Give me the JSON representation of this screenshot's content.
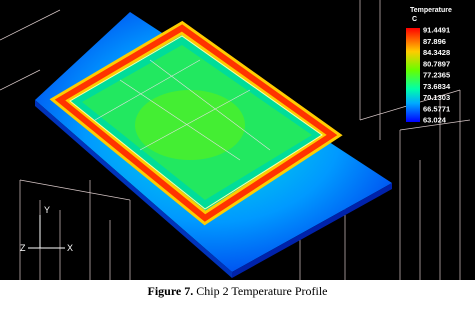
{
  "figure": {
    "legend": {
      "title": "Temperature",
      "unit": "C",
      "labels": [
        "91.4491",
        "87.896",
        "84.3428",
        "80.7897",
        "77.2365",
        "73.6834",
        "70.1303",
        "66.5771",
        "63.024"
      ]
    },
    "axes": {
      "y": "Y",
      "z": "Z",
      "x": "X"
    },
    "caption": {
      "label": "Figure 7.",
      "text": "Chip 2 Temperature Profile"
    }
  }
}
